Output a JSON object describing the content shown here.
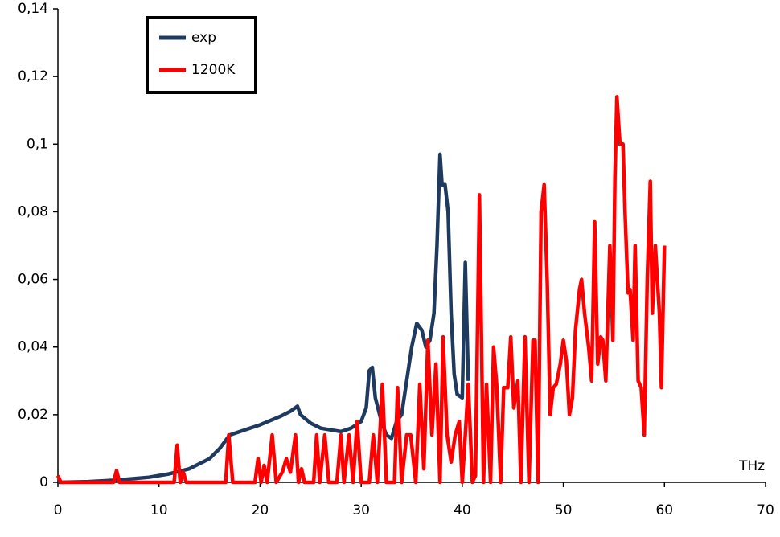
{
  "chart_data": {
    "type": "line",
    "x_label": "THz",
    "xlim": [
      0,
      70
    ],
    "xticks": [
      0,
      10,
      20,
      30,
      40,
      50,
      60,
      70
    ],
    "ylim": [
      0,
      0.14
    ],
    "yticks": [
      0,
      {
        "value": 0.02,
        "label": "0,02"
      },
      {
        "value": 0.04,
        "label": "0,04"
      },
      {
        "value": 0.06,
        "label": "0,06"
      },
      {
        "value": 0.08,
        "label": "0,08"
      },
      {
        "value": 0.1,
        "label": "0,1"
      },
      {
        "value": 0.12,
        "label": "0,12"
      },
      {
        "value": 0.14,
        "label": "0,14"
      }
    ],
    "legend": "upper-left",
    "series": [
      {
        "name": "exp",
        "color": "#1f3a5f",
        "x": [
          0,
          3,
          6,
          9,
          11,
          13,
          15,
          16,
          17,
          18,
          20,
          22,
          23,
          23.7,
          24,
          25,
          26,
          27,
          28,
          29,
          30,
          30.5,
          30.8,
          31.1,
          31.4,
          32,
          32.5,
          33,
          33.5,
          34,
          34.5,
          35,
          35.5,
          36,
          36.4,
          36.8,
          37.2,
          37.5,
          37.8,
          38,
          38.3,
          38.6,
          38.9,
          39.2,
          39.5,
          40,
          40.3,
          40.6
        ],
        "values": [
          0,
          0.0002,
          0.0007,
          0.0015,
          0.0025,
          0.004,
          0.007,
          0.01,
          0.014,
          0.015,
          0.017,
          0.0195,
          0.021,
          0.0225,
          0.02,
          0.0175,
          0.016,
          0.0155,
          0.015,
          0.016,
          0.018,
          0.022,
          0.033,
          0.034,
          0.025,
          0.018,
          0.014,
          0.013,
          0.018,
          0.02,
          0.03,
          0.04,
          0.047,
          0.045,
          0.04,
          0.042,
          0.05,
          0.07,
          0.097,
          0.088,
          0.088,
          0.08,
          0.05,
          0.032,
          0.026,
          0.025,
          0.065,
          0.03
        ]
      },
      {
        "name": "1200K",
        "color": "#ff0000",
        "x": [
          0,
          0.3,
          5.5,
          5.8,
          6.1,
          11.5,
          11.8,
          12.1,
          12.4,
          12.7,
          16.6,
          16.9,
          17.3,
          19.5,
          19.8,
          20.1,
          20.4,
          20.7,
          21.2,
          21.6,
          22.2,
          22.6,
          23,
          23.5,
          23.8,
          24.1,
          24.4,
          25.3,
          25.6,
          25.9,
          26.4,
          26.8,
          27.6,
          28,
          28.3,
          28.8,
          29.2,
          29.6,
          30,
          30.8,
          31.2,
          31.6,
          32.1,
          32.5,
          33.3,
          33.6,
          34,
          34.5,
          34.9,
          35.4,
          35.8,
          36.2,
          36.6,
          37,
          37.4,
          37.8,
          38.1,
          38.5,
          38.9,
          39.3,
          39.7,
          40,
          40.3,
          40.6,
          41,
          41.3,
          41.7,
          42.1,
          42.4,
          42.8,
          43.1,
          43.4,
          43.8,
          44.1,
          44.5,
          44.8,
          45.1,
          45.5,
          45.8,
          46.2,
          46.6,
          47,
          47.2,
          47.5,
          47.8,
          48.1,
          48.4,
          48.7,
          49,
          49.3,
          49.7,
          50,
          50.3,
          50.6,
          50.9,
          51.2,
          51.6,
          51.8,
          52.1,
          52.5,
          52.8,
          53.1,
          53.4,
          53.7,
          53.9,
          54.2,
          54.6,
          54.9,
          55.1,
          55.3,
          55.6,
          55.9,
          56.1,
          56.4,
          56.6,
          56.9,
          57.1,
          57.4,
          57.7,
          58,
          58.3,
          58.6,
          58.8,
          59.1,
          59.5,
          59.7,
          60
        ],
        "values": [
          0.002,
          0,
          0,
          0.0035,
          0,
          0,
          0.011,
          0,
          0.003,
          0,
          0,
          0.014,
          0,
          0,
          0.007,
          0,
          0.005,
          0,
          0.014,
          0,
          0.003,
          0.007,
          0.003,
          0.014,
          0,
          0.004,
          0,
          0,
          0.014,
          0,
          0.014,
          0,
          0,
          0.014,
          0,
          0.014,
          0,
          0.018,
          0,
          0,
          0.014,
          0,
          0.029,
          0,
          0,
          0.028,
          0,
          0.014,
          0.014,
          0,
          0.029,
          0.004,
          0.042,
          0.014,
          0.035,
          0,
          0.043,
          0.014,
          0.006,
          0.014,
          0.018,
          0,
          0.014,
          0.029,
          0,
          0.002,
          0.085,
          0,
          0.029,
          0,
          0.04,
          0.029,
          0,
          0.028,
          0.028,
          0.043,
          0.022,
          0.03,
          0,
          0.043,
          0,
          0.042,
          0.042,
          0,
          0.08,
          0.088,
          0.06,
          0.02,
          0.028,
          0.029,
          0.035,
          0.042,
          0.036,
          0.02,
          0.025,
          0.045,
          0.057,
          0.06,
          0.05,
          0.04,
          0.03,
          0.077,
          0.035,
          0.043,
          0.042,
          0.03,
          0.07,
          0.042,
          0.09,
          0.114,
          0.1,
          0.1,
          0.08,
          0.056,
          0.057,
          0.042,
          0.07,
          0.03,
          0.028,
          0.014,
          0.06,
          0.089,
          0.05,
          0.07,
          0.05,
          0.028,
          0.07
        ]
      }
    ]
  }
}
